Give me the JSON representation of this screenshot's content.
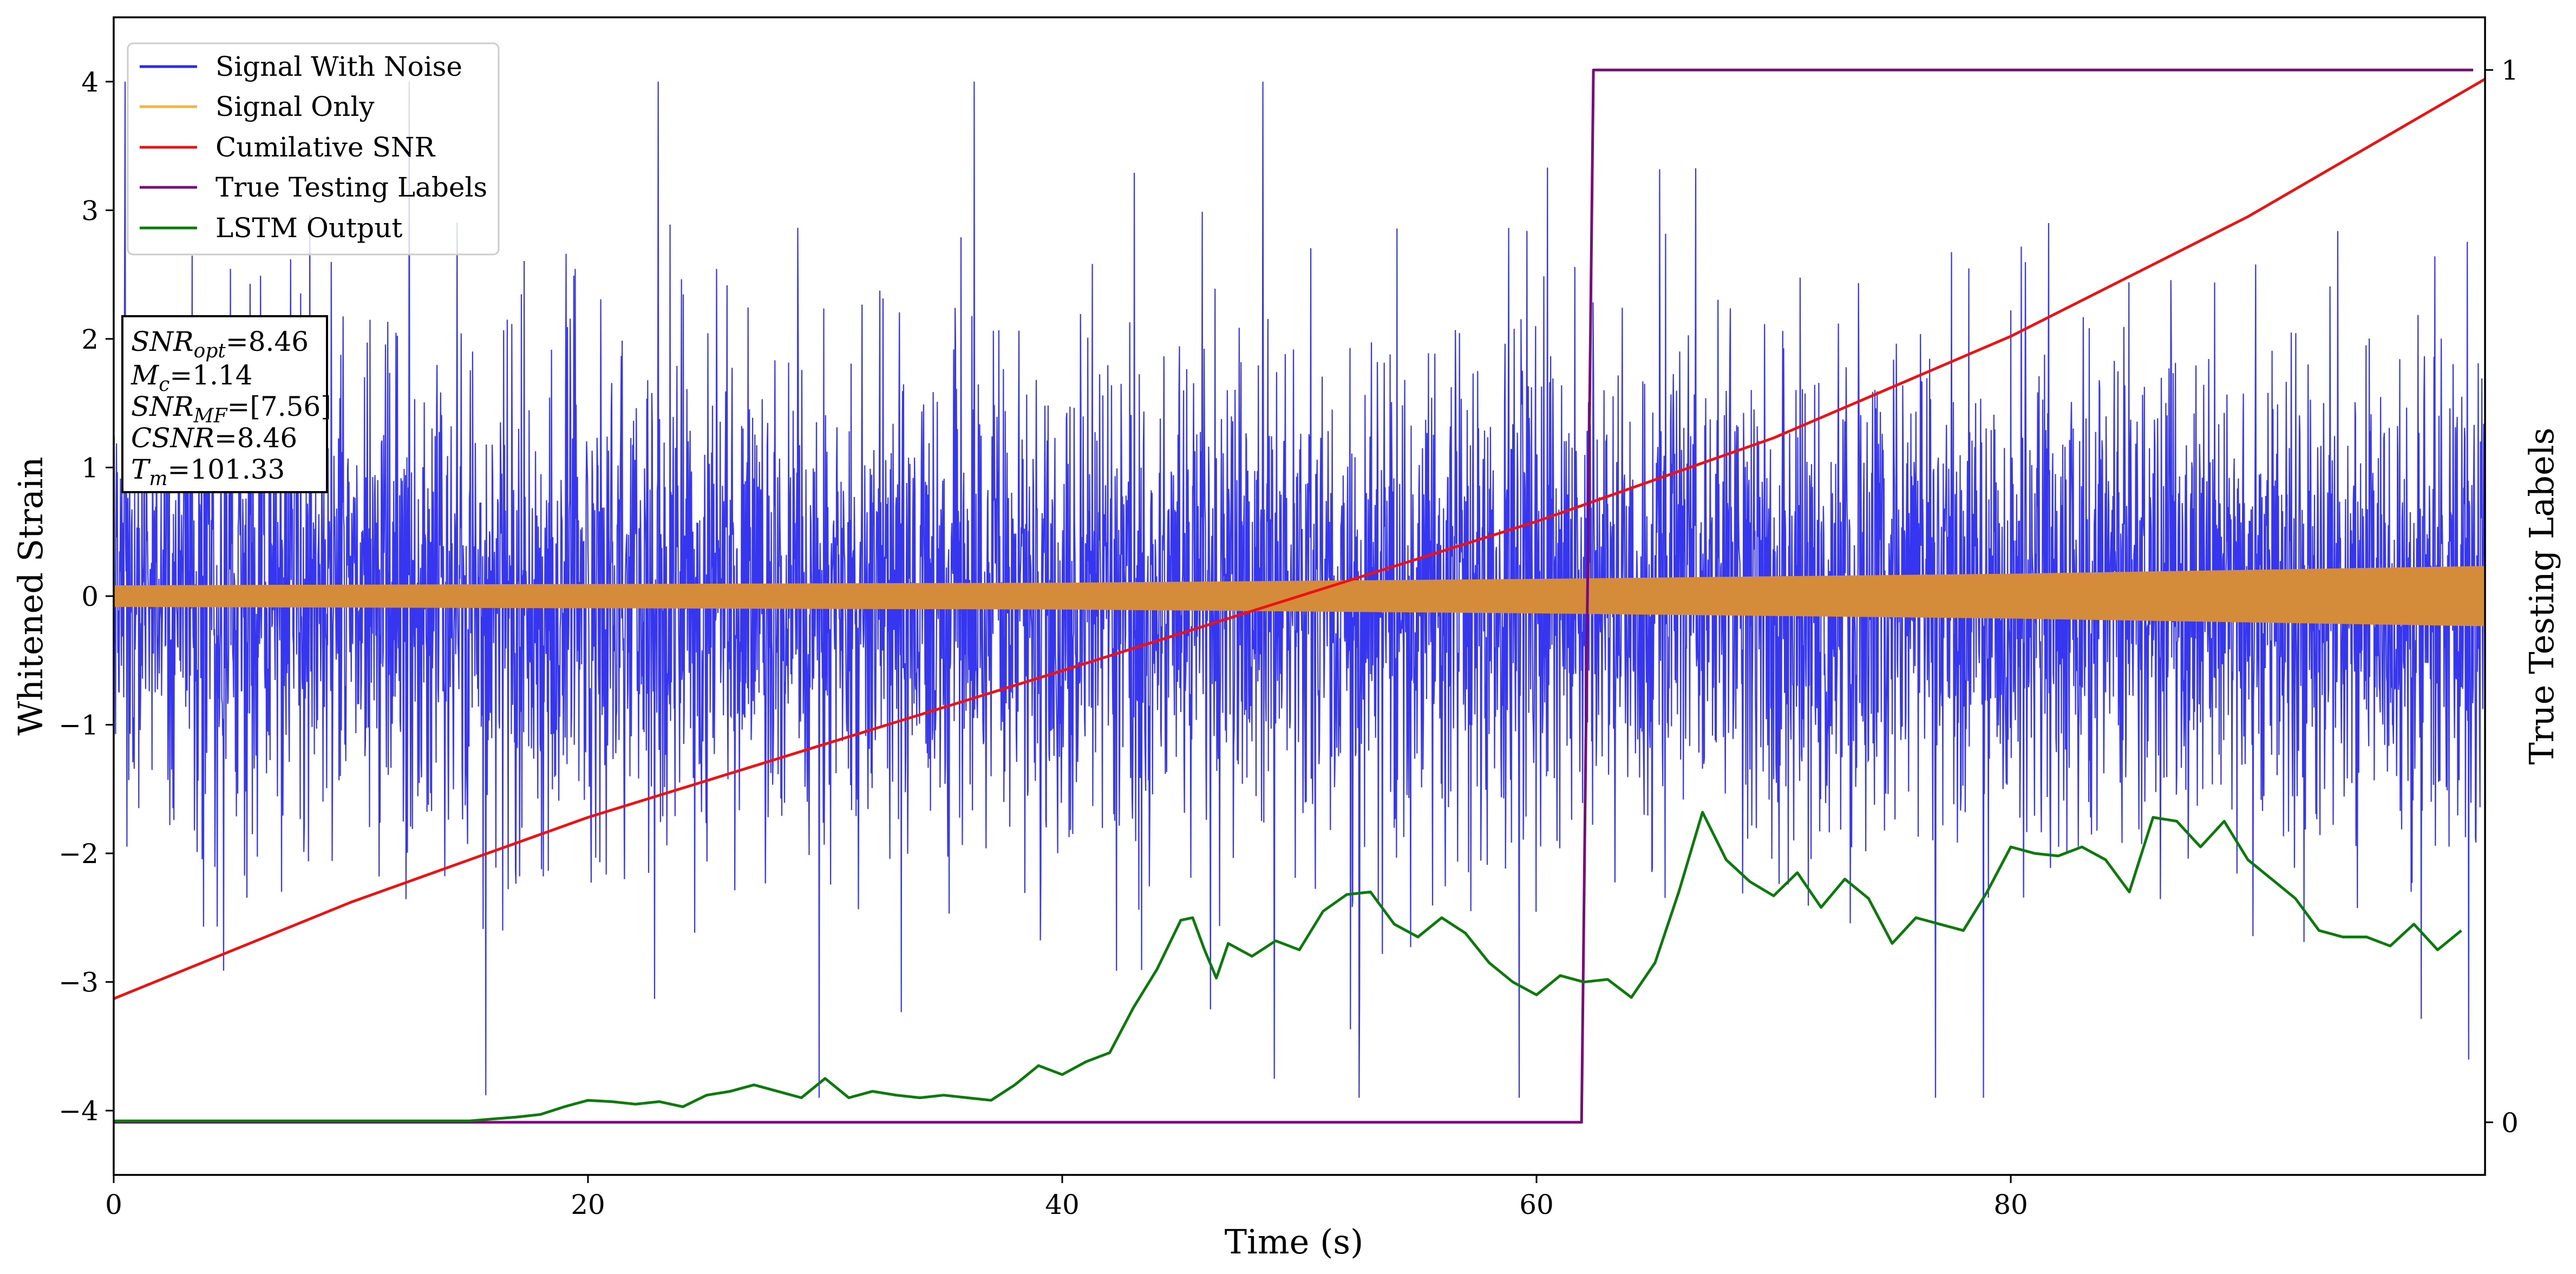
{
  "chart_data": {
    "type": "line",
    "xlabel": "Time (s)",
    "ylabel": "Whitened Strain",
    "ylabel_right": "True Testing Labels",
    "xlim": [
      0,
      100
    ],
    "ylim": [
      -4.5,
      4.5
    ],
    "ylim_right": [
      -0.05,
      1.05
    ],
    "x_ticks": [
      0,
      20,
      40,
      60,
      80
    ],
    "y_ticks": [
      -4,
      -3,
      -2,
      -1,
      0,
      1,
      2,
      3,
      4
    ],
    "y_ticks_right": [
      0,
      1
    ],
    "grid": false,
    "legend": {
      "placement": "upper-left",
      "entries": [
        {
          "name": "Signal With Noise",
          "color": "#2b2bf0"
        },
        {
          "name": "Signal Only",
          "color": "#f5b342"
        },
        {
          "name": "Cumilative SNR",
          "color": "#ee1111"
        },
        {
          "name": "True Testing Labels",
          "color": "#7a0a7a"
        },
        {
          "name": "LSTM Output",
          "color": "#0a7a0a"
        }
      ]
    },
    "annotation": {
      "placement": "left",
      "lines": [
        {
          "italic": "SNR",
          "sub": "opt",
          "value": "=8.46"
        },
        {
          "italic": "M",
          "sub": "c",
          "value": "=1.14"
        },
        {
          "italic": "SNR",
          "sub": "MF",
          "value": "=[7.56]"
        },
        {
          "italic": "CSNR",
          "sub": "",
          "value": "=8.46"
        },
        {
          "italic": "T",
          "sub": "m",
          "value": "=101.33"
        }
      ]
    },
    "series": [
      {
        "name": "Signal With Noise",
        "axis": "left",
        "style": "noise",
        "noise_sigma": 0.9,
        "typical_peak_range": [
          -3.9,
          4.0
        ],
        "color": "#2b2bf0"
      },
      {
        "name": "Signal Only",
        "axis": "left",
        "style": "envelope",
        "x": [
          0,
          20,
          40,
          60,
          80,
          100
        ],
        "amplitude": [
          0.08,
          0.09,
          0.1,
          0.13,
          0.17,
          0.23
        ],
        "color": "#d48c3a"
      },
      {
        "name": "Cumilative SNR",
        "axis": "left",
        "x": [
          0,
          10,
          20,
          30,
          40,
          50,
          60,
          70,
          80,
          90,
          100
        ],
        "y": [
          -3.13,
          -2.38,
          -1.72,
          -1.15,
          -0.58,
          0.0,
          0.58,
          1.23,
          2.02,
          2.95,
          4.02
        ],
        "color": "#ee1111"
      },
      {
        "name": "True Testing Labels",
        "axis": "right",
        "x": [
          0,
          61.9,
          62.4,
          99.5
        ],
        "y": [
          0,
          0,
          1,
          1
        ],
        "color": "#7a0a7a"
      },
      {
        "name": "LSTM Output",
        "axis": "left",
        "x": [
          0,
          15,
          17,
          18,
          19,
          20,
          21,
          22,
          23,
          24,
          25,
          26,
          27,
          28,
          29,
          30,
          31,
          32,
          33,
          34,
          35,
          36,
          37,
          38,
          39,
          40,
          41,
          42,
          43,
          44,
          45,
          45.5,
          46,
          46.5,
          47,
          48,
          49,
          50,
          51,
          52,
          53,
          54,
          55,
          56,
          57,
          58,
          59,
          60,
          61,
          62,
          63,
          64,
          65,
          66,
          67,
          68,
          69,
          70,
          71,
          72,
          73,
          74,
          75,
          76,
          77,
          78,
          79,
          80,
          81,
          82,
          83,
          84,
          85,
          86,
          87,
          88,
          89,
          90,
          91,
          92,
          93,
          94,
          95,
          96,
          97,
          98,
          99
        ],
        "y": [
          -4.08,
          -4.08,
          -4.05,
          -4.03,
          -3.97,
          -3.92,
          -3.93,
          -3.95,
          -3.93,
          -3.97,
          -3.88,
          -3.85,
          -3.8,
          -3.85,
          -3.9,
          -3.75,
          -3.9,
          -3.85,
          -3.88,
          -3.9,
          -3.88,
          -3.9,
          -3.92,
          -3.8,
          -3.65,
          -3.72,
          -3.62,
          -3.55,
          -3.2,
          -2.9,
          -2.52,
          -2.5,
          -2.75,
          -2.97,
          -2.7,
          -2.8,
          -2.68,
          -2.75,
          -2.45,
          -2.32,
          -2.3,
          -2.55,
          -2.65,
          -2.5,
          -2.62,
          -2.85,
          -3.0,
          -3.1,
          -2.95,
          -3.0,
          -2.98,
          -3.12,
          -2.85,
          -2.3,
          -1.68,
          -2.05,
          -2.22,
          -2.33,
          -2.15,
          -2.42,
          -2.2,
          -2.35,
          -2.7,
          -2.5,
          -2.55,
          -2.6,
          -2.3,
          -1.95,
          -2.0,
          -2.02,
          -1.95,
          -2.05,
          -2.3,
          -1.72,
          -1.75,
          -1.95,
          -1.75,
          -2.05,
          -2.2,
          -2.35,
          -2.6,
          -2.65,
          -2.65,
          -2.72,
          -2.55,
          -2.75,
          -2.6
        ],
        "color": "#0a7a0a"
      }
    ]
  }
}
